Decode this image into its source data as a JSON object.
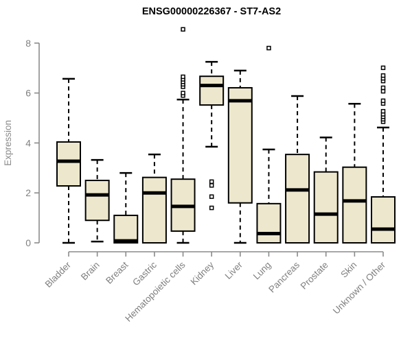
{
  "chart_data": {
    "type": "box",
    "title": "ENSG00000226367 - ST7-AS2",
    "xlabel": "",
    "ylabel": "Expression",
    "ylim": [
      0,
      8.8
    ],
    "yticks": [
      "0",
      "2",
      "4",
      "6",
      "8"
    ],
    "ytick_values": [
      0,
      2,
      4,
      6,
      8
    ],
    "grid": false,
    "legend": "none",
    "categories": [
      "Bladder",
      "Brain",
      "Breast",
      "Gastric",
      "Hematopoietic cells",
      "Kidney",
      "Liver",
      "Lung",
      "Pancreas",
      "Prostate",
      "Skin",
      "Unknown / Other"
    ],
    "boxes": [
      {
        "category": "Bladder",
        "whisker_low": 0,
        "q1": 2.28,
        "median": 3.27,
        "q3": 4.04,
        "whisker_high": 6.57,
        "outliers": []
      },
      {
        "category": "Brain",
        "whisker_low": 0.05,
        "q1": 0.9,
        "median": 1.92,
        "q3": 2.5,
        "whisker_high": 3.32,
        "outliers": []
      },
      {
        "category": "Breast",
        "whisker_low": 0,
        "q1": 0,
        "median": 0.08,
        "q3": 1.1,
        "whisker_high": 2.8,
        "outliers": []
      },
      {
        "category": "Gastric",
        "whisker_low": 0,
        "q1": 0,
        "median": 2.0,
        "q3": 2.62,
        "whisker_high": 3.54,
        "outliers": []
      },
      {
        "category": "Hematopoietic cells",
        "whisker_low": 0,
        "q1": 0.47,
        "median": 1.46,
        "q3": 2.55,
        "whisker_high": 5.74,
        "outliers": [
          5.9,
          6.0,
          6.25,
          6.35,
          6.45,
          6.55,
          6.65,
          8.55
        ]
      },
      {
        "category": "Kidney",
        "whisker_low": 3.85,
        "q1": 5.52,
        "median": 6.3,
        "q3": 6.67,
        "whisker_high": 7.25,
        "outliers": [
          1.4,
          1.85,
          2.3,
          2.45
        ]
      },
      {
        "category": "Liver",
        "whisker_low": 0,
        "q1": 1.6,
        "median": 5.69,
        "q3": 6.21,
        "whisker_high": 6.9,
        "outliers": []
      },
      {
        "category": "Lung",
        "whisker_low": 0,
        "q1": 0,
        "median": 0.37,
        "q3": 1.57,
        "whisker_high": 3.74,
        "outliers": [
          7.8
        ]
      },
      {
        "category": "Pancreas",
        "whisker_low": 0,
        "q1": 0,
        "median": 2.12,
        "q3": 3.54,
        "whisker_high": 5.88,
        "outliers": []
      },
      {
        "category": "Prostate",
        "whisker_low": 0,
        "q1": 0,
        "median": 1.15,
        "q3": 2.84,
        "whisker_high": 4.22,
        "outliers": []
      },
      {
        "category": "Skin",
        "whisker_low": 0,
        "q1": 0,
        "median": 1.68,
        "q3": 3.03,
        "whisker_high": 5.57,
        "outliers": []
      },
      {
        "category": "Unknown / Other",
        "whisker_low": 0,
        "q1": 0,
        "median": 0.55,
        "q3": 1.84,
        "whisker_high": 4.62,
        "outliers": [
          4.85,
          4.95,
          5.05,
          5.15,
          5.27,
          5.58,
          5.69,
          6.07,
          6.21,
          6.48,
          6.59,
          6.7,
          7.01
        ]
      }
    ]
  },
  "styles": {
    "box_fill": "#EDE7CD",
    "box_border": "#000000",
    "median_color": "#000000",
    "whisker_color": "#000000",
    "outlier_stroke": "#000000",
    "outlier_fill": "#FFFFFF",
    "axis_color": "#8A8A8A",
    "tick_label_color": "#7F7F7F",
    "axis_title_color": "#8A8A8A",
    "title_color": "#000000",
    "background": "#FFFFFF"
  }
}
